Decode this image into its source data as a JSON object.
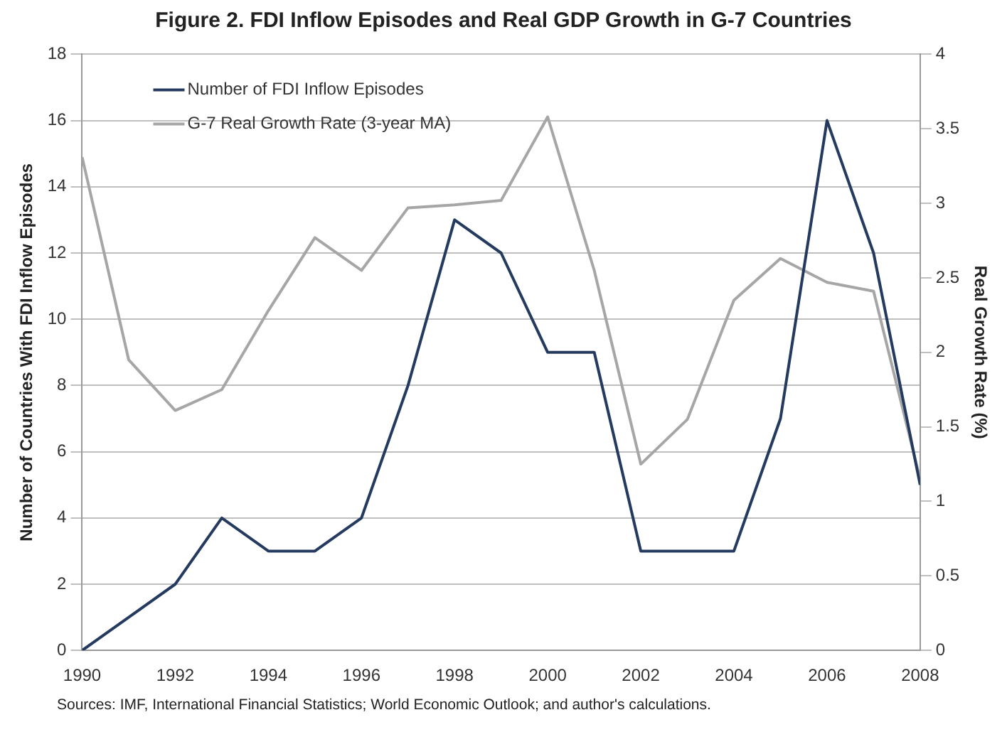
{
  "chart_data": {
    "type": "line",
    "title": "Figure 2. FDI Inflow Episodes and Real GDP Growth in G-7 Countries",
    "ylabel": "Number of Countries With FDI Inflow Episodes",
    "y2label": "Real Growth Rate (%)",
    "x": [
      1990,
      1991,
      1992,
      1993,
      1994,
      1995,
      1996,
      1997,
      1998,
      1999,
      2000,
      2001,
      2002,
      2003,
      2004,
      2005,
      2006,
      2007,
      2008
    ],
    "series": [
      {
        "name": "Number of FDI Inflow Episodes",
        "color": "#243a5e",
        "values": [
          0,
          1,
          2,
          4,
          3,
          3,
          4,
          8,
          13,
          12,
          9,
          9,
          3,
          3,
          3,
          7,
          16,
          12,
          5
        ]
      },
      {
        "name": "G-7 Real Growth Rate (3-year MA)",
        "color": "#a6a6a6",
        "axis": "y2",
        "values": [
          3.31,
          1.95,
          1.61,
          1.75,
          2.28,
          2.77,
          2.55,
          2.97,
          2.99,
          3.02,
          3.58,
          2.55,
          1.25,
          1.55,
          2.35,
          2.63,
          2.47,
          2.41,
          1.15
        ]
      }
    ],
    "xlim": [
      1990,
      2008
    ],
    "xticks": [
      1990,
      1992,
      1994,
      1996,
      1998,
      2000,
      2002,
      2004,
      2006,
      2008
    ],
    "ylim": [
      0,
      18
    ],
    "yticks": [
      0,
      2,
      4,
      6,
      8,
      10,
      12,
      14,
      16,
      18
    ],
    "y2lim": [
      0,
      4
    ],
    "y2ticks": [
      0,
      0.5,
      1,
      1.5,
      2,
      2.5,
      3,
      3.5,
      4
    ],
    "grid": "y",
    "legend": "top left",
    "marker": "none",
    "line_style": "solid",
    "annotations": [
      "Sources: IMF, International Financial Statistics; World Economic Outlook; and author's calculations."
    ]
  }
}
